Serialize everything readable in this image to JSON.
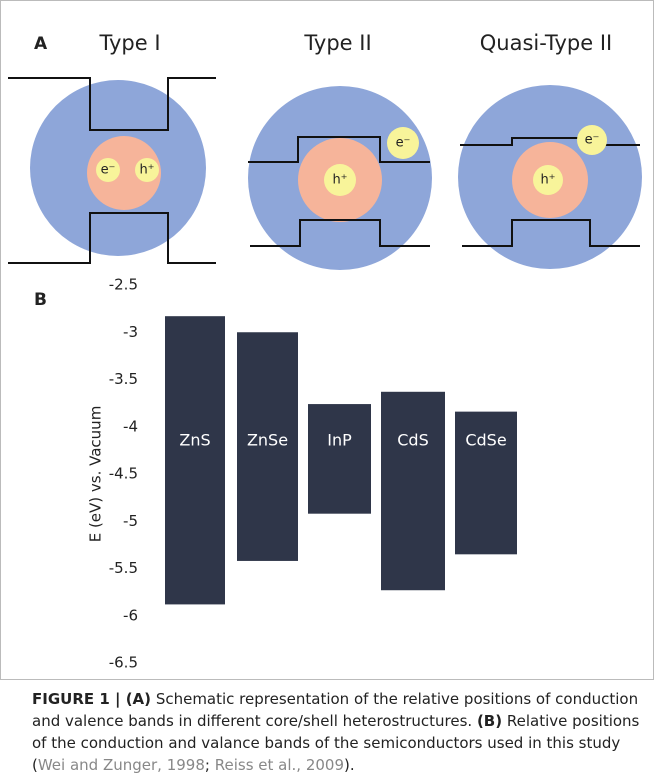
{
  "panel_a": {
    "label": "A",
    "diagrams": [
      {
        "title": "Type I",
        "electron": "e⁻",
        "hole": "h⁺"
      },
      {
        "title": "Type II",
        "electron": "e⁻",
        "hole": "h⁺"
      },
      {
        "title": "Quasi-Type II",
        "electron": "e⁻",
        "hole": "h⁺"
      }
    ]
  },
  "panel_b_label": "B",
  "chart_data": {
    "type": "floating-bar",
    "y_label": "E (eV) vs. Vacuum",
    "categories": [
      "ZnS",
      "ZnSe",
      "InP",
      "CdS",
      "CdSe"
    ],
    "top": [
      -2.83,
      -3.0,
      -3.76,
      -3.63,
      -3.84
    ],
    "bottom": [
      -5.88,
      -5.42,
      -4.92,
      -5.73,
      -5.35
    ],
    "color": "#2f3649",
    "ylim": [
      -6.5,
      -2.5
    ],
    "yticks": [
      -2.5,
      -3,
      -3.5,
      -4,
      -4.5,
      -5,
      -5.5,
      -6,
      -6.5
    ]
  },
  "caption": [
    "FIGURE 1 | (A)",
    "Schematic representation of the relative positions of conduction and valence bands in different core/shell heterostructures.",
    "(B)",
    "Relative positions of the conduction and valance bands of the semiconductors used in this study (",
    "Wei and Zunger, 1998",
    ";",
    "Reiss et al., 2009",
    ")."
  ]
}
